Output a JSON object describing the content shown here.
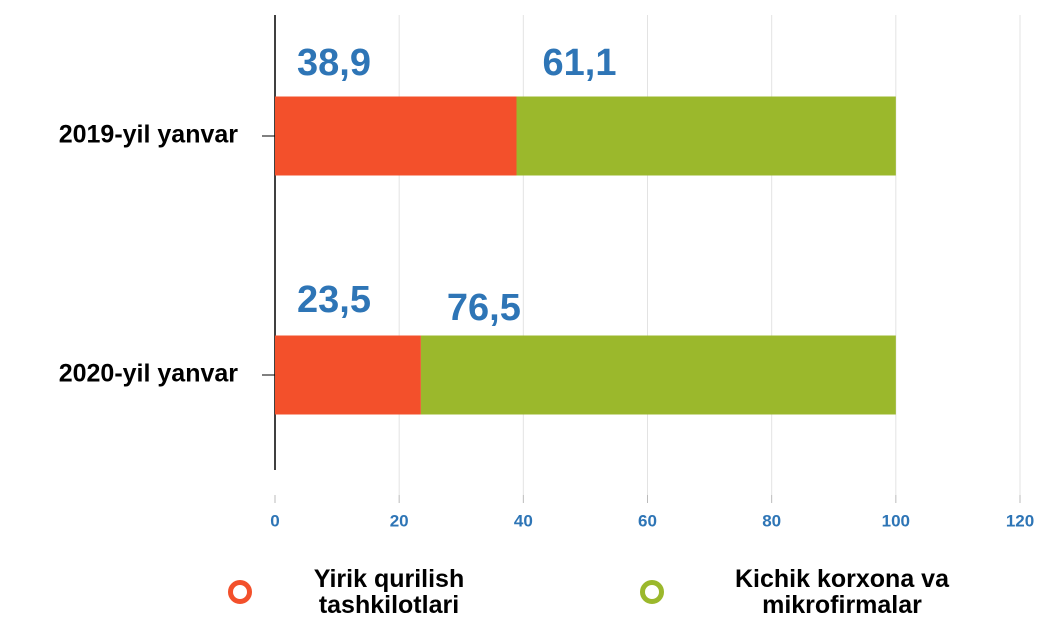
{
  "chart_data": {
    "type": "stacked-bar-horizontal",
    "categories": [
      "2019-yil yanvar",
      "2020-yil yanvar"
    ],
    "series": [
      {
        "name": "Yirik qurilish tashkilotlari",
        "color": "#f3502b",
        "values": [
          38.9,
          23.5
        ],
        "value_labels": [
          "38,9",
          "23,5"
        ]
      },
      {
        "name": "Kichik korxona va mikrofirmalar",
        "color": "#9bb82c",
        "values": [
          61.1,
          76.5
        ],
        "value_labels": [
          "61,1",
          "76,5"
        ]
      }
    ],
    "xlim": [
      0,
      120
    ],
    "xticks": [
      0,
      20,
      40,
      60,
      80,
      100,
      120
    ],
    "grid": true
  }
}
